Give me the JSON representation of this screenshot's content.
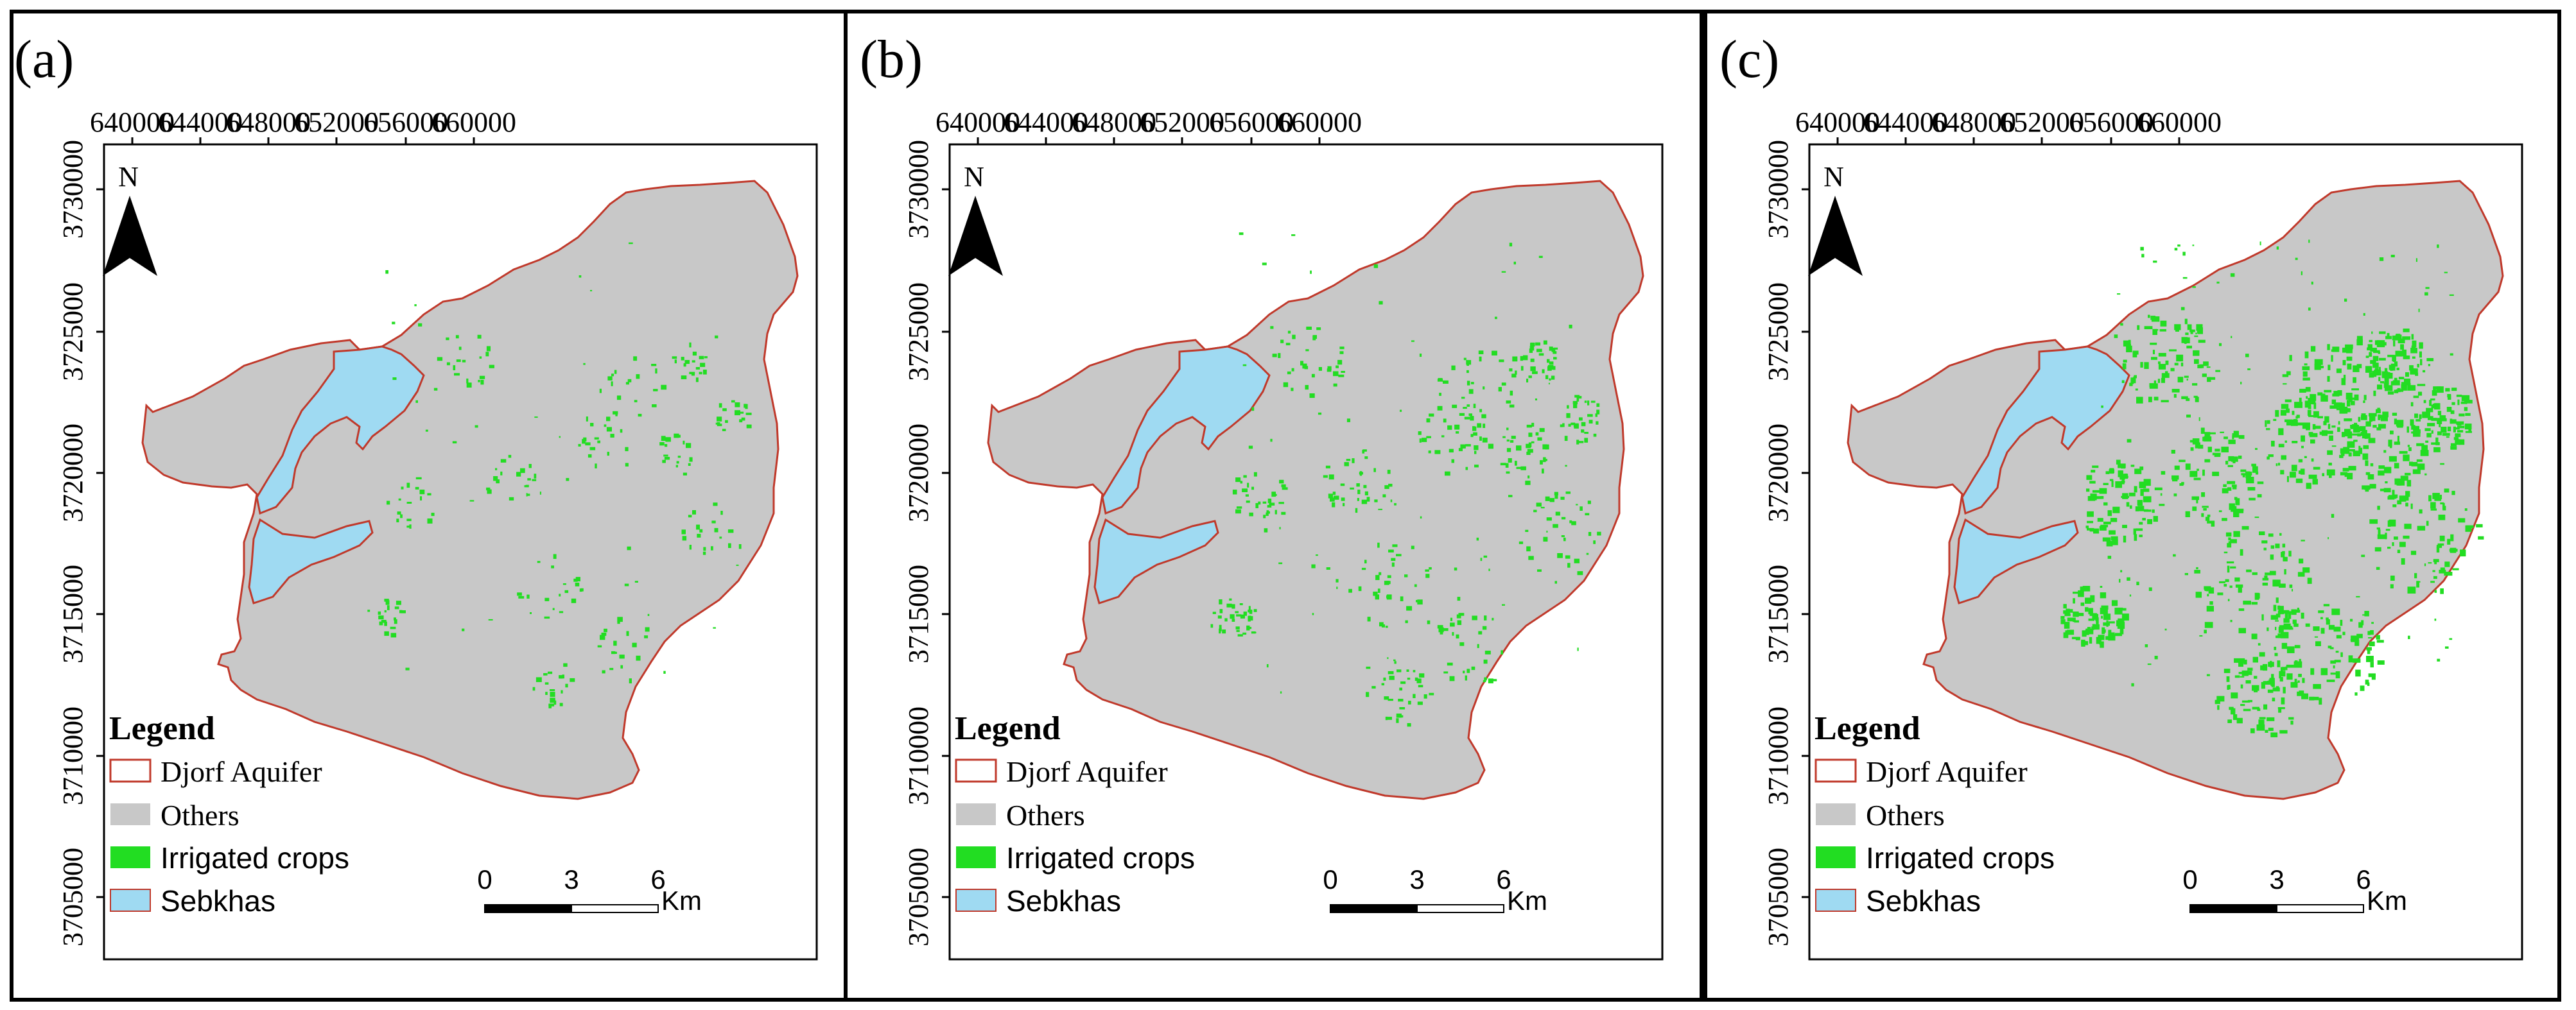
{
  "figure": {
    "panels": [
      {
        "label": "(a)",
        "crop_level": 1
      },
      {
        "label": "(b)",
        "crop_level": 2
      },
      {
        "label": "(c)",
        "crop_level": 3
      }
    ],
    "x_ticks": [
      "640000",
      "644000",
      "648000",
      "652000",
      "656000",
      "660000"
    ],
    "y_ticks": [
      "3730000",
      "3725000",
      "3720000",
      "3715000",
      "3710000",
      "3705000"
    ],
    "north_label": "N",
    "legend": {
      "title": "Legend",
      "items": [
        {
          "label": "Djorf Aquifer",
          "swatch": "outline",
          "color": "#c0392b"
        },
        {
          "label": "Others",
          "swatch": "fill",
          "color": "#c8c8c8"
        },
        {
          "label": "Irrigated crops",
          "swatch": "fill",
          "color": "#22dd22"
        },
        {
          "label": "Sebkhas",
          "swatch": "fill",
          "color": "#9fdaf2"
        }
      ]
    },
    "scale_bar": {
      "labels": [
        "0",
        "3",
        "6"
      ],
      "unit": "Km"
    },
    "colors": {
      "aquifer_fill": "#c8c8c8",
      "aquifer_outline": "#c0392b",
      "crops": "#22dd22",
      "sebkhas": "#9fdaf2"
    },
    "icons": [
      "north-arrow-icon"
    ]
  }
}
